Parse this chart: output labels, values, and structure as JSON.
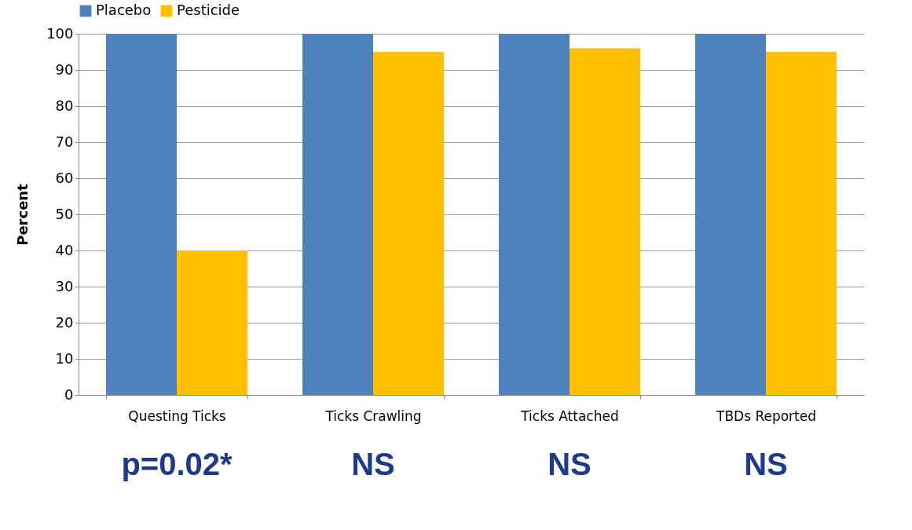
{
  "chart_data": {
    "type": "bar",
    "ylabel": "Percent",
    "categories": [
      "Questing Ticks",
      "Ticks Crawling",
      "Ticks Attached",
      "TBDs Reported"
    ],
    "series": [
      {
        "name": "Placebo",
        "color": "#4f81bd",
        "values": [
          100,
          100,
          100,
          100
        ]
      },
      {
        "name": "Pesticide",
        "color": "#ffc000",
        "values": [
          40,
          95,
          96,
          95
        ]
      }
    ],
    "ylim": [
      0,
      100
    ],
    "yticks": [
      0,
      10,
      20,
      30,
      40,
      50,
      60,
      70,
      80,
      90,
      100
    ],
    "grid": "y",
    "legend": "top",
    "annotations": [
      "p=0.02*",
      "NS",
      "NS",
      "NS"
    ]
  }
}
